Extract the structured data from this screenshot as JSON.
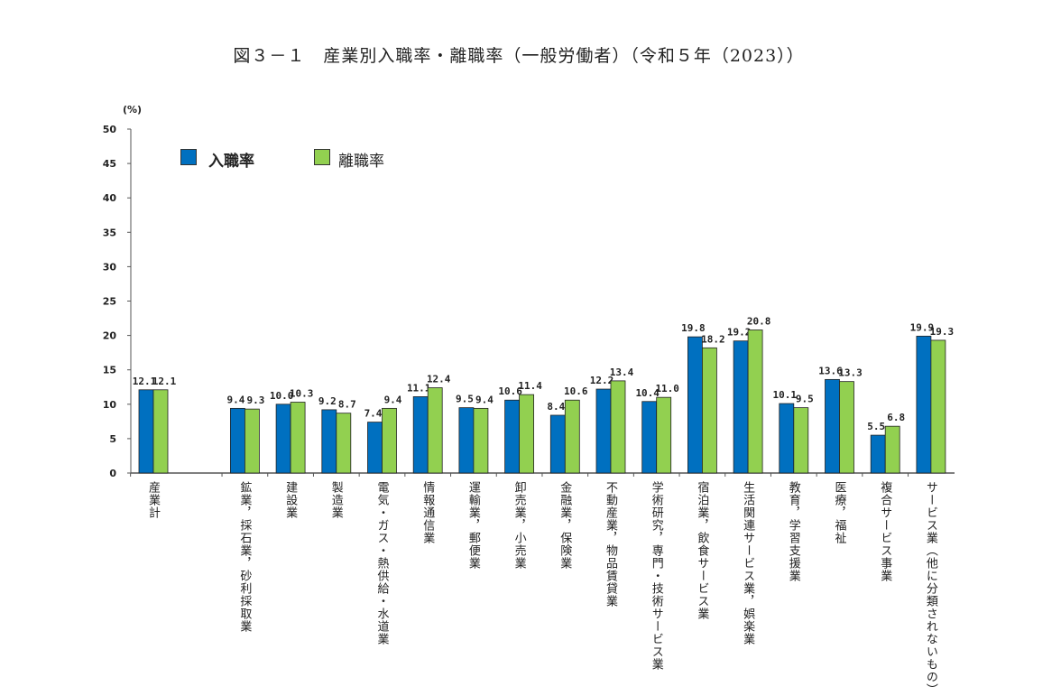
{
  "chart_data": {
    "type": "bar",
    "title": "図３－１　産業別入職率・離職率（一般労働者）（令和５年（2023））",
    "ylabel": "(%)",
    "ylim": [
      0,
      50
    ],
    "yticks": [
      0,
      5,
      10,
      15,
      20,
      25,
      30,
      35,
      40,
      45,
      50
    ],
    "grid": false,
    "legend_placement": "top-left",
    "categories": [
      "産業計",
      "鉱業，採石業，砂利採取業",
      "建設業",
      "製造業",
      "電気・ガス・熱供給・水道業",
      "情報通信業",
      "運輸業，郵便業",
      "卸売業，小売業",
      "金融業，保険業",
      "不動産業，物品賃貸業",
      "学術研究，専門・技術サービス業",
      "宿泊業，飲食サービス業",
      "生活関連サービス業，娯楽業",
      "教育，学習支援業",
      "医療，福祉",
      "複合サービス事業",
      "サービス業（他に分類されないもの）"
    ],
    "series": [
      {
        "name": "入職率",
        "color": "#0070c0",
        "values": [
          12.1,
          9.4,
          10.0,
          9.2,
          7.4,
          11.1,
          9.5,
          10.6,
          8.4,
          12.2,
          10.4,
          19.8,
          19.2,
          10.1,
          13.6,
          5.5,
          19.9
        ]
      },
      {
        "name": "離職率",
        "color": "#92d050",
        "values": [
          12.1,
          9.3,
          10.3,
          8.7,
          9.4,
          12.4,
          9.4,
          11.4,
          10.6,
          13.4,
          11.0,
          18.2,
          20.8,
          9.5,
          13.3,
          6.8,
          19.3
        ]
      }
    ]
  }
}
